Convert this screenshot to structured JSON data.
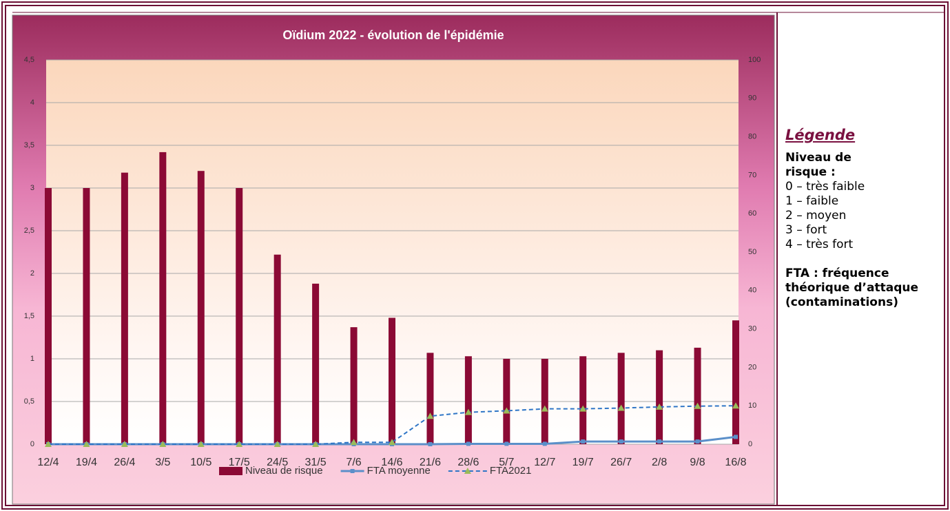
{
  "chart_data": {
    "type": "bar",
    "title": "Oïdium 2022 - évolution de l'épidémie",
    "categories": [
      "12/4",
      "19/4",
      "26/4",
      "3/5",
      "10/5",
      "17/5",
      "24/5",
      "31/5",
      "7/6",
      "14/6",
      "21/6",
      "28/6",
      "5/7",
      "12/7",
      "19/7",
      "26/7",
      "2/8",
      "9/8",
      "16/8"
    ],
    "series": [
      {
        "name": "Niveau de risque",
        "type": "bar",
        "color": "#8b0a35",
        "values": [
          3,
          3,
          3.18,
          3.42,
          3.2,
          3,
          2.22,
          1.88,
          1.37,
          1.48,
          1.07,
          1.03,
          1.0,
          1.0,
          1.03,
          1.07,
          1.1,
          1.13,
          1.45
        ]
      },
      {
        "name": "FTA moyenne",
        "type": "line",
        "axis": "y2",
        "color": "#5b8fc9",
        "marker": "square",
        "values": [
          0,
          0,
          0,
          0,
          0,
          0,
          0,
          0,
          0,
          0,
          0,
          0.1,
          0.1,
          0.1,
          0.7,
          0.7,
          0.7,
          0.7,
          1.9
        ]
      },
      {
        "name": "FTA2021",
        "type": "line",
        "axis": "y2",
        "color": "#2e75c6",
        "marker": "triangle",
        "marker_color": "#9bbb59",
        "dashed": true,
        "values": [
          0,
          0,
          0,
          0,
          0,
          0,
          0,
          0,
          0.5,
          0.5,
          7.3,
          8.3,
          8.7,
          9.2,
          9.2,
          9.4,
          9.7,
          9.9,
          10
        ]
      }
    ],
    "ylim": [
      0,
      4.5
    ],
    "yticks": [
      0,
      {
        "value": 0.5,
        "label": "0,5"
      },
      1,
      {
        "value": 1.5,
        "label": "1,5"
      },
      2,
      {
        "value": 2.5,
        "label": "2,5"
      },
      3,
      {
        "value": 3.5,
        "label": "3,5"
      },
      4,
      {
        "value": 4.5,
        "label": "4,5"
      }
    ],
    "y2lim": [
      0,
      100
    ],
    "y2ticks": [
      0,
      10,
      20,
      30,
      40,
      50,
      60,
      70,
      80,
      90,
      100
    ],
    "grid": true,
    "legend": "bottom"
  },
  "sidebar": {
    "title": "Légende",
    "risk_heading": "Niveau de risque :",
    "risk_levels": [
      "0 – très faible",
      "1 – faible",
      "2 – moyen",
      "3 – fort",
      "4 – très fort"
    ],
    "fta": "FTA : fréquence théorique d’attaque (contaminations)"
  }
}
